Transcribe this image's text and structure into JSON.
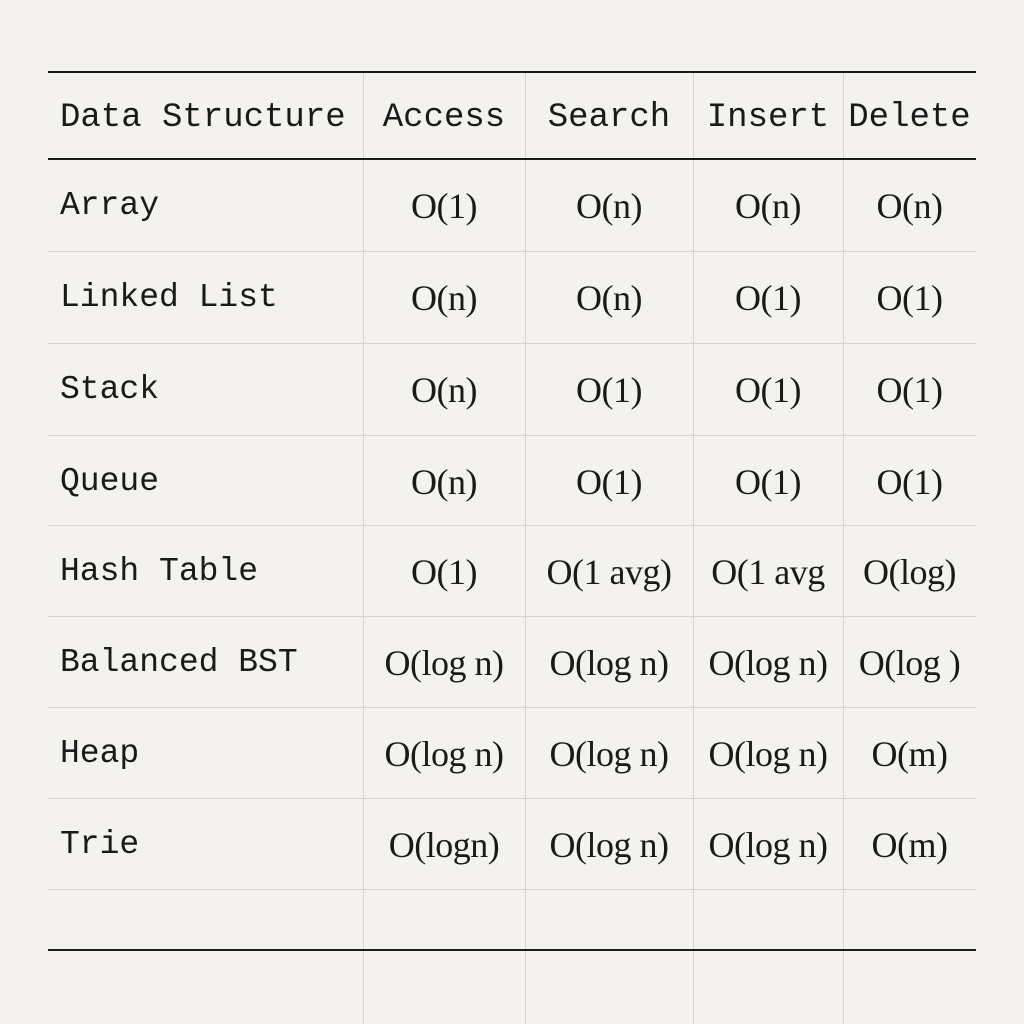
{
  "table": {
    "headers": [
      "Data Structure",
      "Access",
      "Search",
      "Insert",
      "Delete"
    ],
    "rows": [
      [
        "Array",
        "O(1)",
        "O(n)",
        "O(n)",
        "O(n)"
      ],
      [
        "Linked List",
        "O(n)",
        "O(n)",
        "O(1)",
        "O(1)"
      ],
      [
        "Stack",
        "O(n)",
        "O(1)",
        "O(1)",
        "O(1)"
      ],
      [
        "Queue",
        "O(n)",
        "O(1)",
        "O(1)",
        "O(1)"
      ],
      [
        "Hash Table",
        "O(1)",
        "O(1 avg)",
        "O(1 avg",
        "O(log)"
      ],
      [
        "Balanced BST",
        "O(log n)",
        "O(log n)",
        "O(log n)",
        "O(log )"
      ],
      [
        "Heap",
        "O(log n)",
        "O(log n)",
        "O(log n)",
        "O(m)"
      ],
      [
        "Trie",
        "O(logn)",
        "O(log n)",
        "O(log n)",
        "O(m)"
      ]
    ]
  }
}
